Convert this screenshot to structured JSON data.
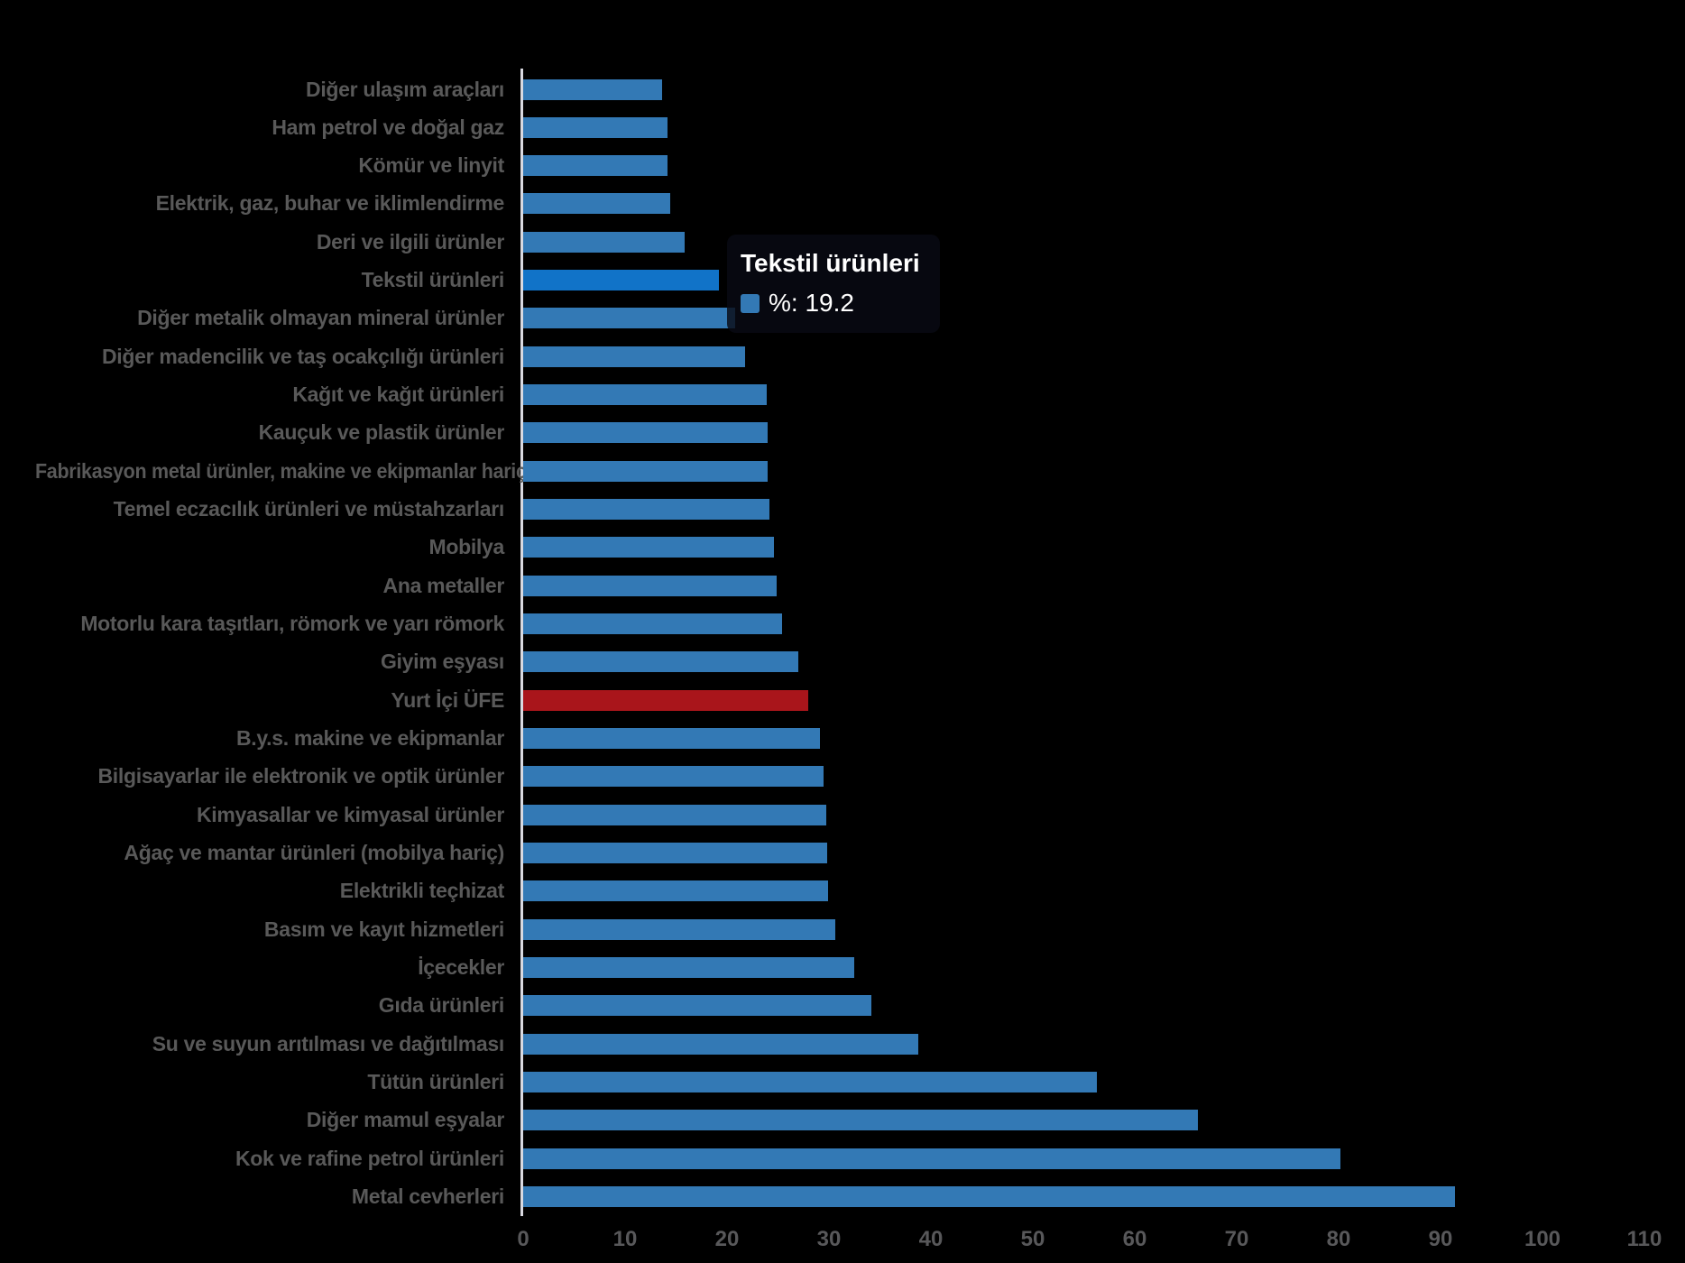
{
  "page": {
    "background": "#000000"
  },
  "chart_data": {
    "type": "bar",
    "orientation": "horizontal",
    "title": "",
    "xlabel": "",
    "ylabel": "",
    "xlim": [
      0,
      110
    ],
    "x_ticks": [
      0,
      10,
      20,
      30,
      40,
      50,
      60,
      70,
      80,
      90,
      100,
      110
    ],
    "grid": false,
    "legend_position": "none",
    "categories": [
      "Diğer ulaşım araçları",
      "Ham petrol ve doğal gaz",
      "Kömür ve linyit",
      "Elektrik, gaz, buhar ve iklimlendirme",
      "Deri ve ilgili ürünler",
      "Tekstil ürünleri",
      "Diğer metalik olmayan mineral ürünler",
      "Diğer madencilik ve taş ocakçılığı ürünleri",
      "Kağıt ve kağıt ürünleri",
      "Kauçuk ve plastik ürünler",
      "Fabrikasyon metal ürünler, makine ve ekipmanlar hariç",
      "Temel eczacılık ürünleri ve müstahzarları",
      "Mobilya",
      "Ana metaller",
      "Motorlu kara taşıtları, römork ve yarı römork",
      "Giyim eşyası",
      "Yurt İçi ÜFE",
      "B.y.s. makine ve ekipmanlar",
      "Bilgisayarlar ile elektronik ve optik ürünler",
      "Kimyasallar ve kimyasal ürünler",
      "Ağaç ve mantar ürünleri (mobilya hariç)",
      "Elektrikli teçhizat",
      "Basım ve kayıt hizmetleri",
      "İçecekler",
      "Gıda ürünleri",
      "Su ve suyun arıtılması ve dağıtılması",
      "Tütün ürünleri",
      "Diğer mamul eşyalar",
      "Kok ve rafine petrol ürünleri",
      "Metal cevherleri"
    ],
    "values": [
      13.6,
      14.2,
      14.2,
      14.4,
      15.8,
      19.2,
      20.8,
      21.8,
      23.9,
      24.0,
      24.0,
      24.2,
      24.6,
      24.9,
      25.4,
      27.0,
      28.0,
      29.1,
      29.5,
      29.7,
      29.8,
      29.9,
      30.6,
      32.5,
      34.2,
      38.8,
      56.3,
      66.2,
      80.2,
      91.4
    ],
    "highlighted_category": "Tekstil ürünleri",
    "highlighted_value": 19.2,
    "emphasis_category": "Yurt İçi ÜFE",
    "colors": {
      "bar_default": "#3379B5",
      "bar_highlighted": "#1173C8",
      "bar_emphasis": "#A9151B",
      "category_label": "#595959",
      "tick_label": "#58585A",
      "axis_line": "#D9D9E0"
    }
  },
  "tooltip": {
    "title": "Tekstil ürünleri",
    "value_text": "%: 19.2",
    "swatch_color": "#3379B5",
    "text_color": "#FFFFFF"
  }
}
